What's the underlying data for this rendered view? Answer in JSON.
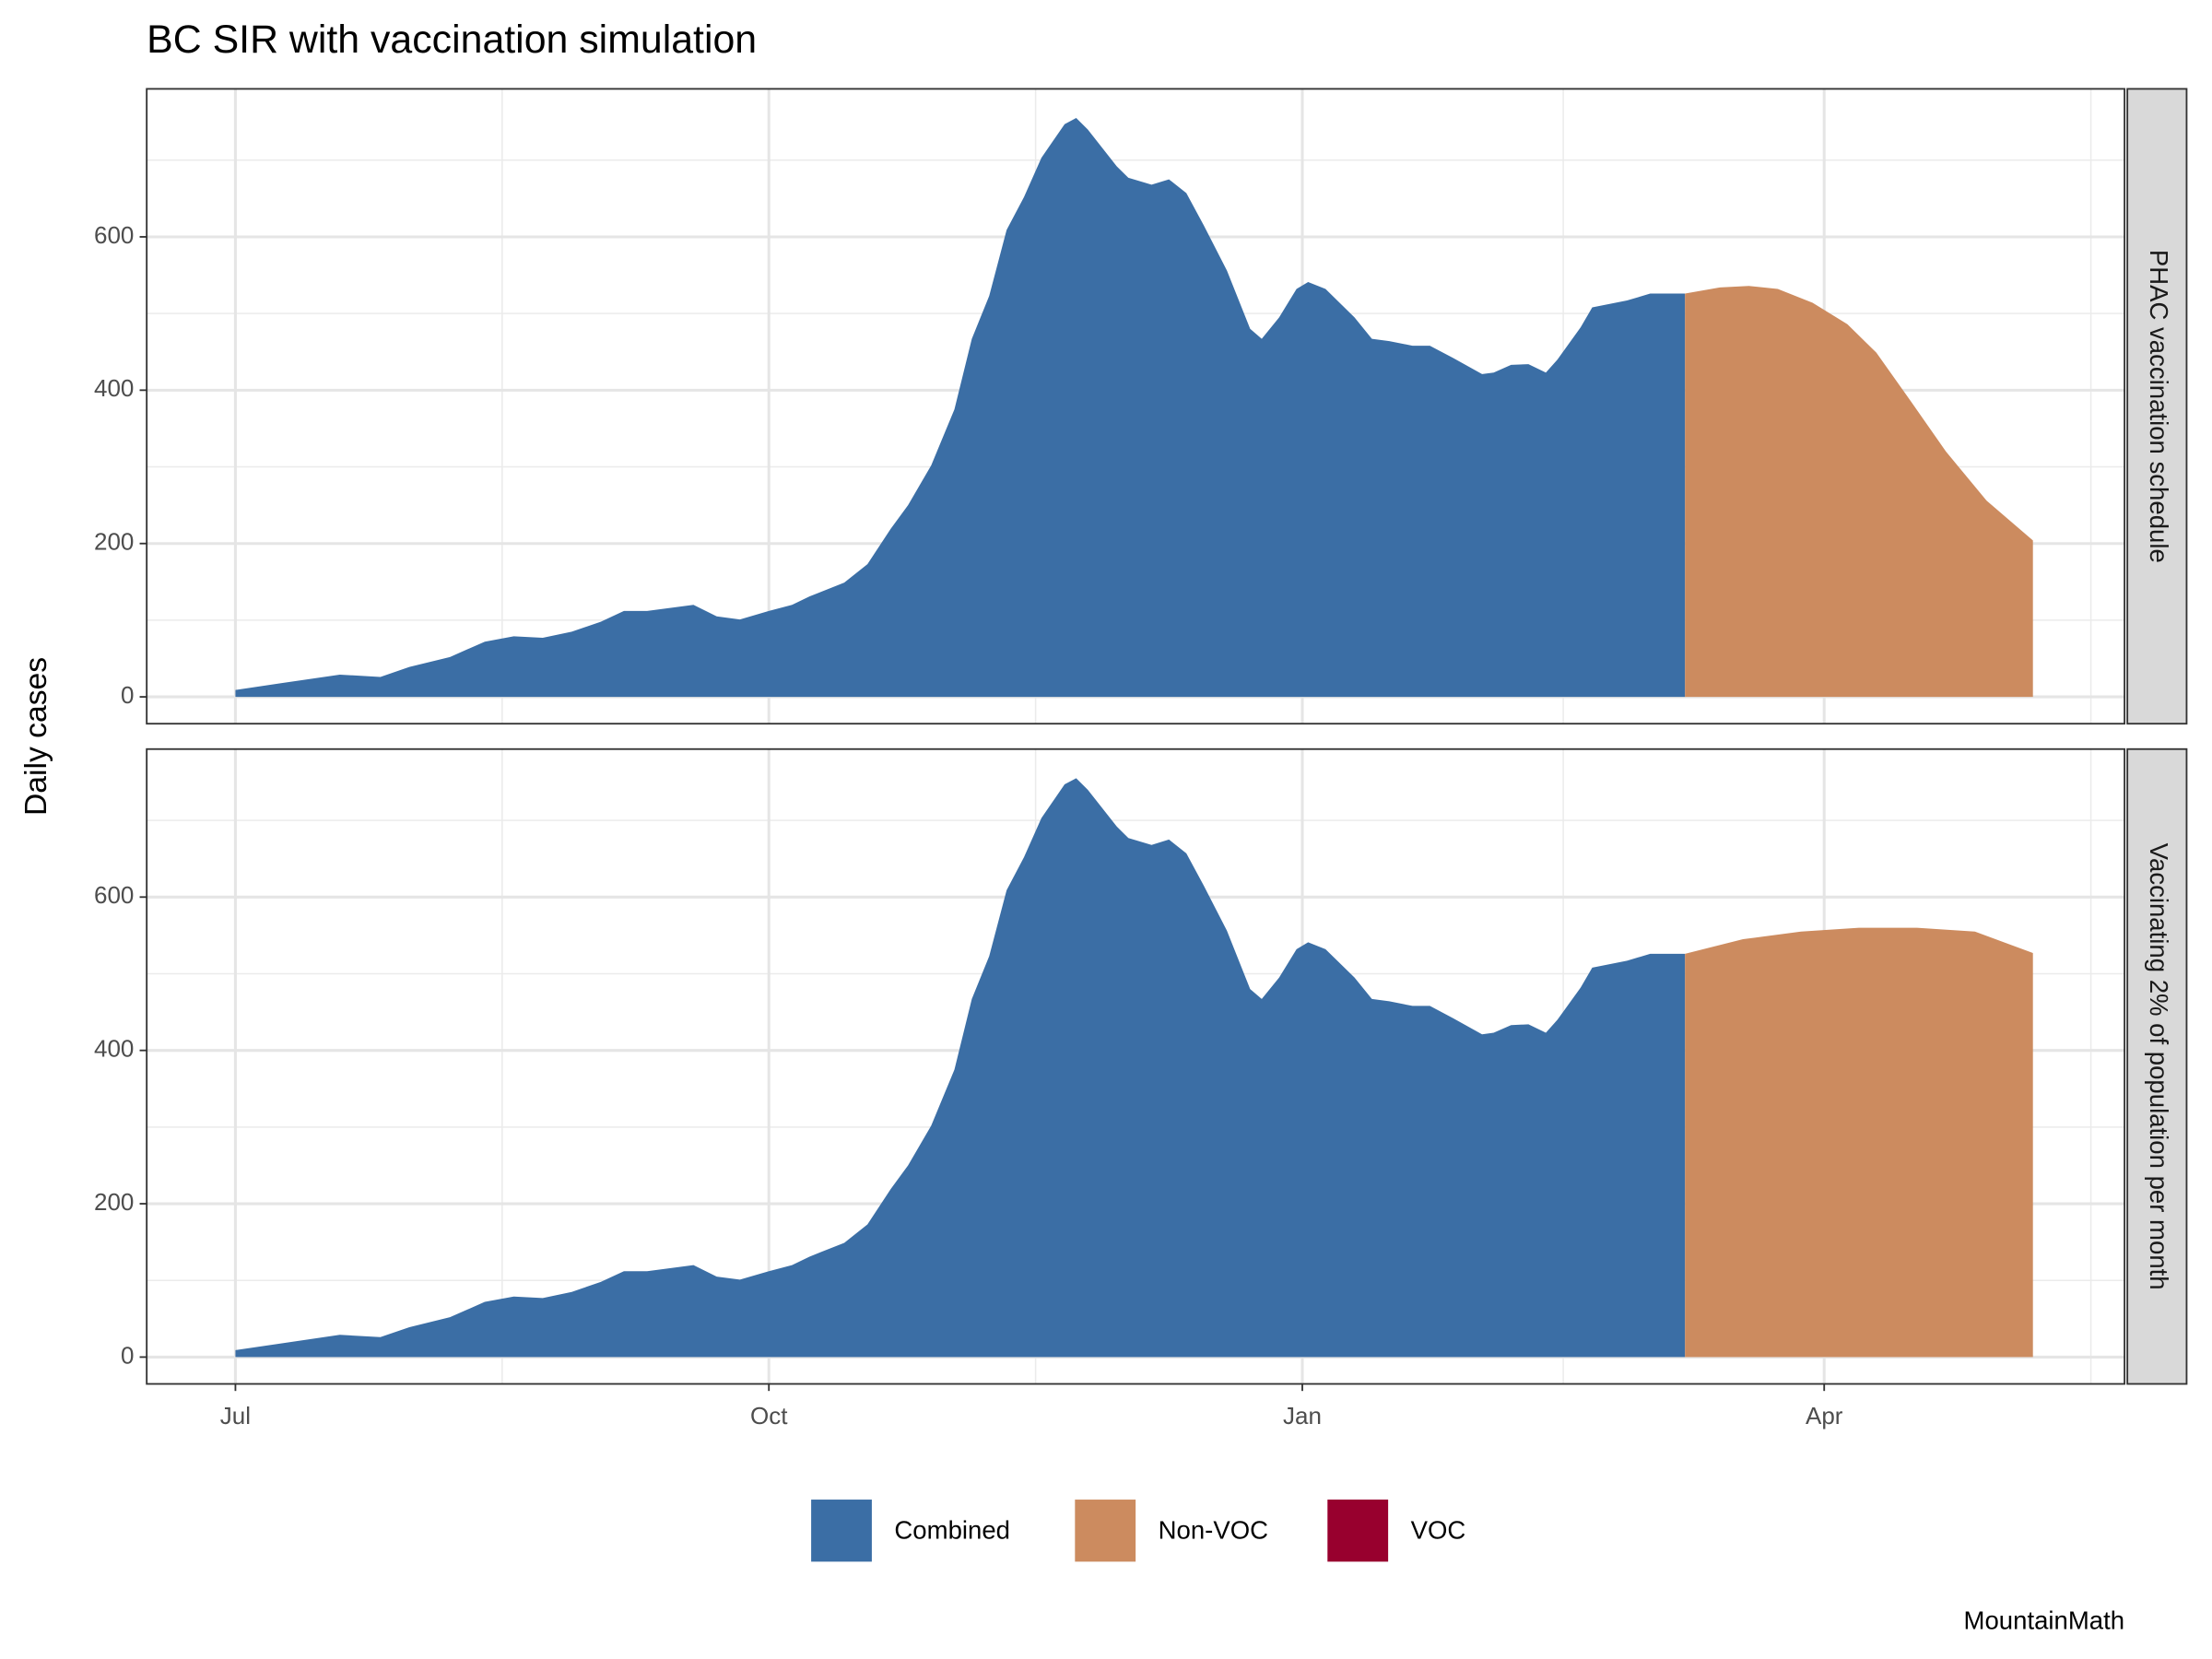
{
  "chart_data": {
    "type": "area",
    "title": "BC SIR with vaccination simulation",
    "y_label": "Daily cases",
    "caption": "MountainMath",
    "xlim": [
      -15.3,
      325.8
    ],
    "xticks": [
      {
        "value": 0,
        "label": "Jul"
      },
      {
        "value": 92,
        "label": "Oct"
      },
      {
        "value": 184,
        "label": "Jan"
      },
      {
        "value": 274,
        "label": "Apr"
      }
    ],
    "x_minor_ticks": [
      46,
      138,
      229,
      320
    ],
    "ylim": [
      -35,
      793
    ],
    "yticks": [
      0,
      200,
      400,
      600
    ],
    "y_minor_ticks": [
      100,
      300,
      500,
      700
    ],
    "grid": true,
    "legend_position": "bottom",
    "legend": [
      {
        "name": "Combined",
        "color": "#3b6ea5"
      },
      {
        "name": "Non-VOC",
        "color": "#cc8b5f"
      },
      {
        "name": "VOC",
        "color": "#98002e"
      }
    ],
    "panels": [
      {
        "label": "PHAC vaccination schedule",
        "series": [
          {
            "name": "Combined",
            "color": "#3b6ea5",
            "x": [
              0,
              8,
              18,
              25,
              30,
              37,
              43,
              48,
              53,
              58,
              63,
              67,
              71,
              79,
              83,
              87,
              92,
              96,
              99,
              105,
              109,
              113,
              116,
              120,
              124,
              127,
              130,
              133,
              136,
              139,
              143,
              145,
              147,
              152,
              154,
              158,
              161,
              164,
              167,
              171,
              175,
              177,
              180,
              183,
              185,
              188,
              193,
              196,
              199,
              203,
              206,
              210,
              215,
              217,
              220,
              223,
              226,
              228,
              232,
              234,
              238,
              240,
              244,
              250
            ],
            "values": [
              9,
              18,
              29,
              26,
              39,
              52,
              72,
              79,
              77,
              85,
              98,
              112,
              112,
              120,
              105,
              101,
              112,
              120,
              131,
              149,
              173,
              219,
              250,
              302,
              375,
              467,
              523,
              609,
              652,
              703,
              747,
              755,
              740,
              692,
              677,
              668,
              675,
              657,
              615,
              556,
              480,
              467,
              495,
              532,
              541,
              532,
              495,
              467,
              464,
              458,
              458,
              442,
              421,
              423,
              433,
              434,
              423,
              440,
              482,
              508,
              514,
              517,
              526,
              526
            ]
          },
          {
            "name": "Non-VOC",
            "color": "#cc8b5f",
            "x": [
              250,
              256,
              261,
              266,
              272,
              278,
              283,
              289,
              295,
              302,
              310
            ],
            "values": [
              526,
              534,
              536,
              532,
              514,
              486,
              449,
              385,
              320,
              256,
              204
            ]
          }
        ]
      },
      {
        "label": "Vaccinating 2% of population per month",
        "series": [
          {
            "name": "Combined",
            "color": "#3b6ea5",
            "x": [
              0,
              8,
              18,
              25,
              30,
              37,
              43,
              48,
              53,
              58,
              63,
              67,
              71,
              79,
              83,
              87,
              92,
              96,
              99,
              105,
              109,
              113,
              116,
              120,
              124,
              127,
              130,
              133,
              136,
              139,
              143,
              145,
              147,
              152,
              154,
              158,
              161,
              164,
              167,
              171,
              175,
              177,
              180,
              183,
              185,
              188,
              193,
              196,
              199,
              203,
              206,
              210,
              215,
              217,
              220,
              223,
              226,
              228,
              232,
              234,
              238,
              240,
              244,
              250
            ],
            "values": [
              9,
              18,
              29,
              26,
              39,
              52,
              72,
              79,
              77,
              85,
              98,
              112,
              112,
              120,
              105,
              101,
              112,
              120,
              131,
              149,
              173,
              219,
              250,
              302,
              375,
              467,
              523,
              609,
              652,
              703,
              747,
              755,
              740,
              692,
              677,
              668,
              675,
              657,
              615,
              556,
              480,
              467,
              495,
              532,
              541,
              532,
              495,
              467,
              464,
              458,
              458,
              442,
              421,
              423,
              433,
              434,
              423,
              440,
              482,
              508,
              514,
              517,
              526,
              526
            ]
          },
          {
            "name": "Non-VOC",
            "color": "#cc8b5f",
            "x": [
              250,
              260,
              270,
              280,
              290,
              300,
              310
            ],
            "values": [
              526,
              545,
              555,
              560,
              560,
              555,
              527
            ]
          }
        ]
      }
    ]
  }
}
